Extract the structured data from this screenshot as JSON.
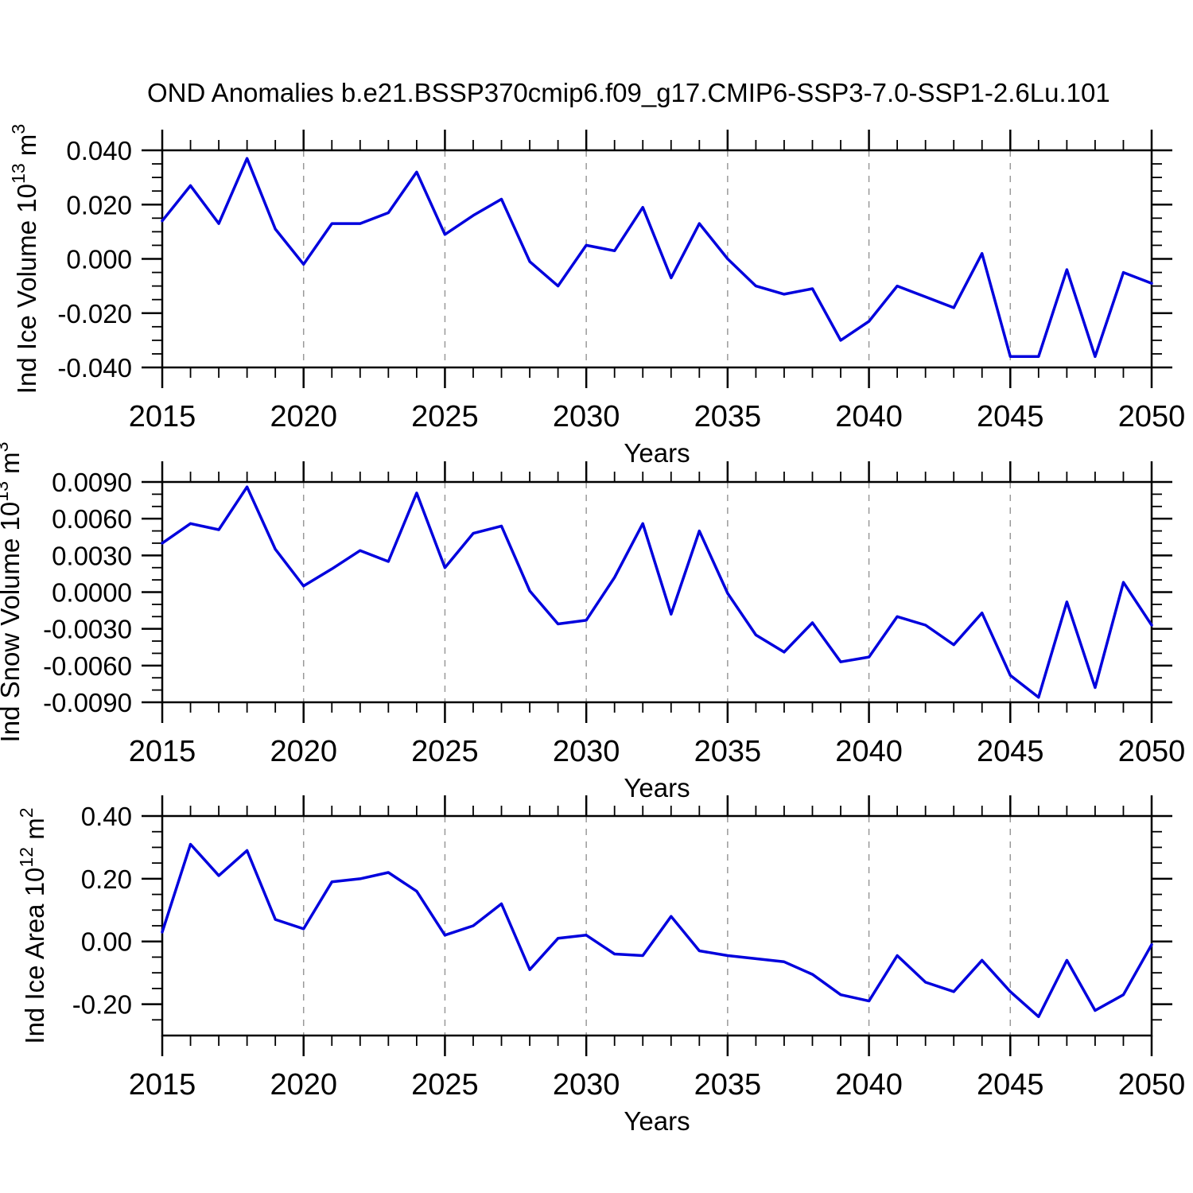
{
  "title": "OND Anomalies b.e21.BSSP370cmip6.f09_g17.CMIP6-SSP3-7.0-SSP1-2.6Lu.101",
  "colors": {
    "line": "#0000dd",
    "grid": "#999999",
    "axis": "#000000",
    "text": "#000000",
    "background": "#ffffff"
  },
  "x_axis": {
    "label": "Years",
    "tick_labels": [
      "2015",
      "2020",
      "2025",
      "2030",
      "2035",
      "2040",
      "2045",
      "2050"
    ],
    "major_ticks": [
      2015,
      2020,
      2025,
      2030,
      2035,
      2040,
      2045,
      2050
    ],
    "gridlines": [
      2020,
      2025,
      2030,
      2035,
      2040,
      2045
    ],
    "range": [
      2015,
      2050
    ],
    "minor_step": 1
  },
  "chart_data": [
    {
      "type": "line",
      "title": "",
      "xlabel": "Years",
      "ylabel_segments": [
        {
          "t": "Ind Ice Volume 10"
        },
        {
          "t": "13",
          "sup": true
        },
        {
          "t": " m"
        },
        {
          "t": "3",
          "sup": true
        }
      ],
      "ylabel_plain": "Ind Ice Volume 10^13 m^3",
      "x": [
        2015,
        2016,
        2017,
        2018,
        2019,
        2020,
        2021,
        2022,
        2023,
        2024,
        2025,
        2026,
        2027,
        2028,
        2029,
        2030,
        2031,
        2032,
        2033,
        2034,
        2035,
        2036,
        2037,
        2038,
        2039,
        2040,
        2041,
        2042,
        2043,
        2044,
        2045,
        2046,
        2047,
        2048,
        2049,
        2050
      ],
      "values": [
        0.014,
        0.027,
        0.013,
        0.037,
        0.011,
        -0.002,
        0.013,
        0.013,
        0.017,
        0.032,
        0.009,
        0.016,
        0.022,
        -0.001,
        -0.01,
        0.005,
        0.003,
        0.019,
        -0.007,
        0.013,
        0.0,
        -0.01,
        -0.013,
        -0.011,
        -0.03,
        -0.023,
        -0.01,
        -0.014,
        -0.018,
        0.002,
        -0.036,
        -0.036,
        -0.004,
        -0.036,
        -0.005,
        -0.009
      ],
      "ylim": [
        -0.04,
        0.04
      ],
      "yticks": [
        0.04,
        0.02,
        0.0,
        -0.02,
        -0.04
      ],
      "ytick_labels": [
        "0.040",
        "0.020",
        "0.000",
        "-0.020",
        "-0.040"
      ],
      "y_minor_step": 0.005,
      "grid": true,
      "legend": null
    },
    {
      "type": "line",
      "title": "",
      "xlabel": "Years",
      "ylabel_segments": [
        {
          "t": "Ind Snow Volume 10"
        },
        {
          "t": "13",
          "sup": true
        },
        {
          "t": " m"
        },
        {
          "t": "3",
          "sup": true
        }
      ],
      "ylabel_plain": "Ind Snow Volume 10^13 m^3",
      "x": [
        2015,
        2016,
        2017,
        2018,
        2019,
        2020,
        2021,
        2022,
        2023,
        2024,
        2025,
        2026,
        2027,
        2028,
        2029,
        2030,
        2031,
        2032,
        2033,
        2034,
        2035,
        2036,
        2037,
        2038,
        2039,
        2040,
        2041,
        2042,
        2043,
        2044,
        2045,
        2046,
        2047,
        2048,
        2049,
        2050
      ],
      "values": [
        0.004,
        0.0056,
        0.0051,
        0.0086,
        0.0035,
        0.0005,
        0.0019,
        0.0034,
        0.0025,
        0.0081,
        0.002,
        0.0048,
        0.0054,
        0.0001,
        -0.0026,
        -0.0023,
        0.0012,
        0.0056,
        -0.0018,
        0.005,
        -0.0001,
        -0.0035,
        -0.0049,
        -0.0025,
        -0.0057,
        -0.0053,
        -0.002,
        -0.0027,
        -0.0043,
        -0.0017,
        -0.0068,
        -0.0086,
        -0.0008,
        -0.0078,
        0.0008,
        -0.0027
      ],
      "ylim": [
        -0.009,
        0.009
      ],
      "yticks": [
        0.009,
        0.006,
        0.003,
        0.0,
        -0.003,
        -0.006,
        -0.009
      ],
      "ytick_labels": [
        "0.0090",
        "0.0060",
        "0.0030",
        "0.0000",
        "-0.0030",
        "-0.0060",
        "-0.0090"
      ],
      "y_minor_step": 0.001,
      "grid": true,
      "legend": null
    },
    {
      "type": "line",
      "title": "",
      "xlabel": "Years",
      "ylabel_segments": [
        {
          "t": "Ind Ice Area 10"
        },
        {
          "t": "12",
          "sup": true
        },
        {
          "t": " m"
        },
        {
          "t": "2",
          "sup": true
        }
      ],
      "ylabel_plain": "Ind Ice Area 10^12 m^2",
      "x": [
        2015,
        2016,
        2017,
        2018,
        2019,
        2020,
        2021,
        2022,
        2023,
        2024,
        2025,
        2026,
        2027,
        2028,
        2029,
        2030,
        2031,
        2032,
        2033,
        2034,
        2035,
        2036,
        2037,
        2038,
        2039,
        2040,
        2041,
        2042,
        2043,
        2044,
        2045,
        2046,
        2047,
        2048,
        2049,
        2050
      ],
      "values": [
        0.03,
        0.31,
        0.21,
        0.29,
        0.07,
        0.04,
        0.19,
        0.2,
        0.22,
        0.16,
        0.02,
        0.05,
        0.12,
        -0.09,
        0.01,
        0.02,
        -0.04,
        -0.045,
        0.08,
        -0.03,
        -0.045,
        -0.055,
        -0.065,
        -0.105,
        -0.17,
        -0.19,
        -0.045,
        -0.13,
        -0.16,
        -0.06,
        -0.16,
        -0.24,
        -0.06,
        -0.22,
        -0.17,
        -0.01
      ],
      "ylim": [
        -0.3,
        0.4
      ],
      "yticks": [
        0.4,
        0.2,
        0.0,
        -0.2
      ],
      "ytick_labels": [
        "0.40",
        "0.20",
        "0.00",
        "-0.20"
      ],
      "y_minor_step": 0.05,
      "grid": true,
      "legend": null
    }
  ]
}
